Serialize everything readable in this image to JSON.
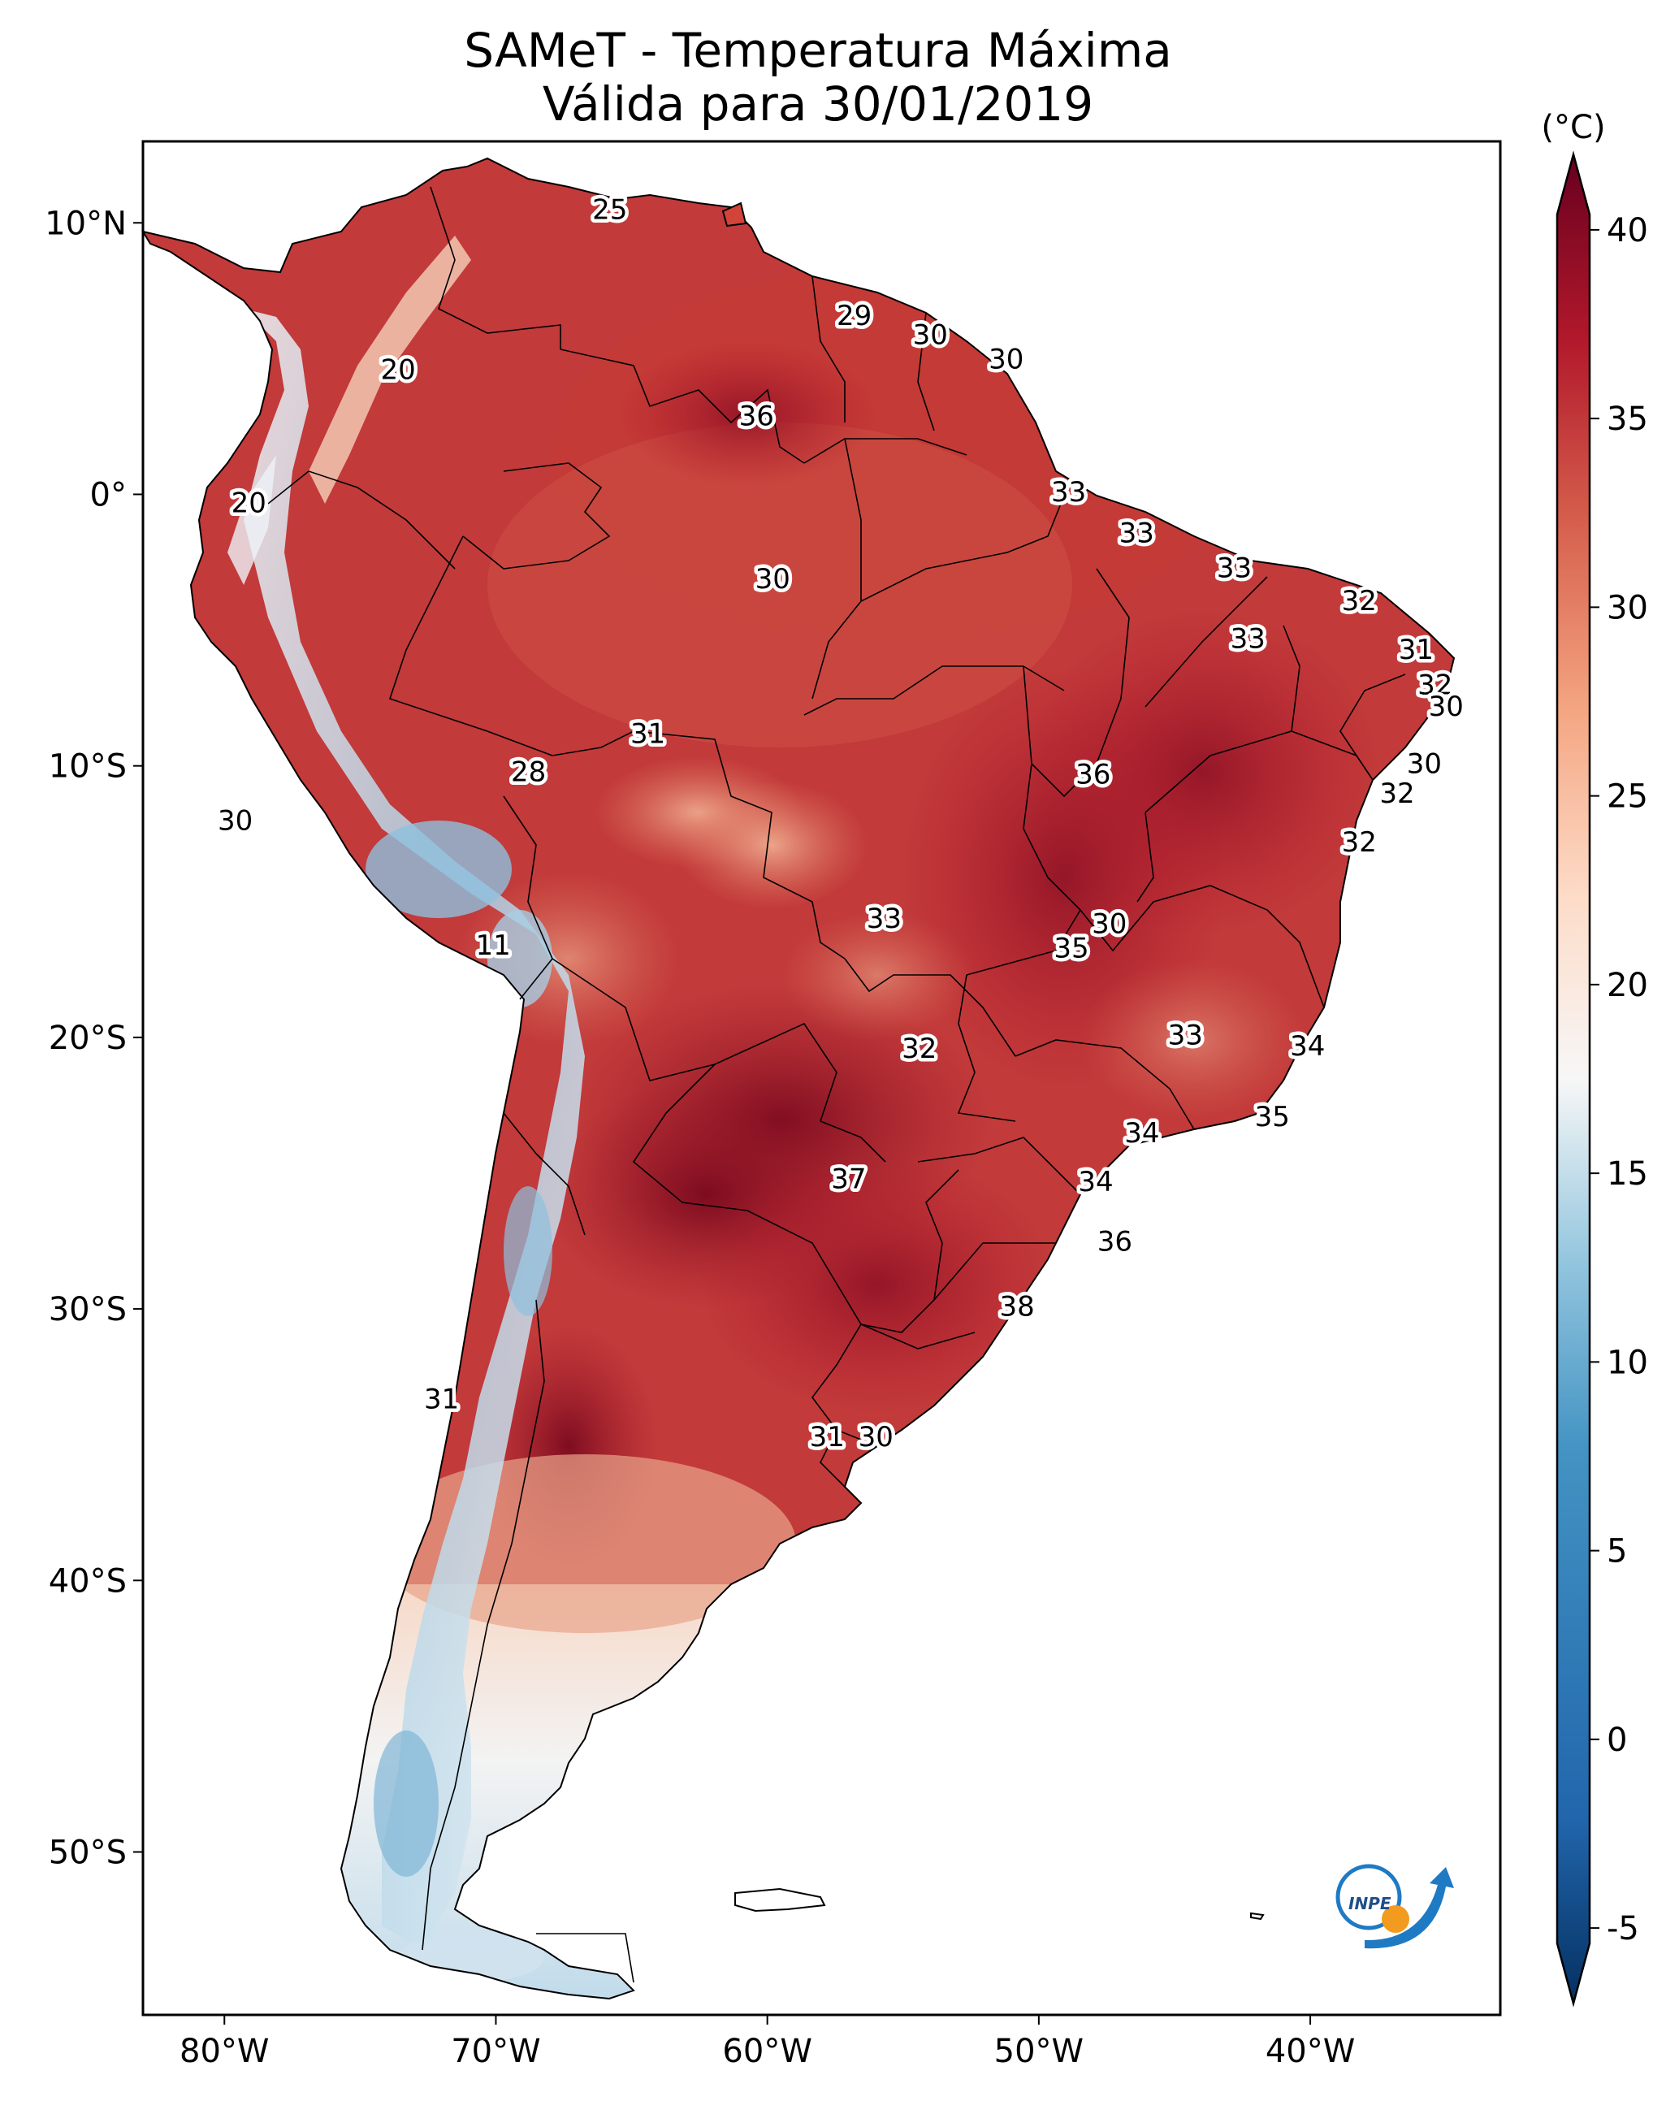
{
  "title": {
    "line1": "SAMeT - Temperatura Máxima",
    "line2": "Válida para 30/01/2019"
  },
  "map": {
    "lon_range": [
      -83,
      -33
    ],
    "lat_range": [
      -56,
      13
    ],
    "lon_ticks": [
      {
        "value": -80,
        "label": "80°W"
      },
      {
        "value": -70,
        "label": "70°W"
      },
      {
        "value": -60,
        "label": "60°W"
      },
      {
        "value": -50,
        "label": "50°W"
      },
      {
        "value": -40,
        "label": "40°W"
      }
    ],
    "lat_ticks": [
      {
        "value": 10,
        "label": "10°N"
      },
      {
        "value": 0,
        "label": "0°"
      },
      {
        "value": -10,
        "label": "10°S"
      },
      {
        "value": -20,
        "label": "20°S"
      },
      {
        "value": -30,
        "label": "30°S"
      },
      {
        "value": -40,
        "label": "40°S"
      },
      {
        "value": -50,
        "label": "50°S"
      }
    ],
    "contour_labels": [
      {
        "lon": -65.8,
        "lat": 10.5,
        "text": "25"
      },
      {
        "lon": -56.8,
        "lat": 6.6,
        "text": "29"
      },
      {
        "lon": -54.0,
        "lat": 5.9,
        "text": "30"
      },
      {
        "lon": -51.2,
        "lat": 5.0,
        "text": "30"
      },
      {
        "lon": -73.6,
        "lat": 4.6,
        "text": "20"
      },
      {
        "lon": -60.4,
        "lat": 2.9,
        "text": "36"
      },
      {
        "lon": -79.1,
        "lat": -0.3,
        "text": "20"
      },
      {
        "lon": -48.9,
        "lat": 0.1,
        "text": "33"
      },
      {
        "lon": -46.4,
        "lat": -1.4,
        "text": "33"
      },
      {
        "lon": -59.8,
        "lat": -3.1,
        "text": "30"
      },
      {
        "lon": -42.8,
        "lat": -2.7,
        "text": "33"
      },
      {
        "lon": -38.2,
        "lat": -3.9,
        "text": "32"
      },
      {
        "lon": -42.3,
        "lat": -5.3,
        "text": "33"
      },
      {
        "lon": -36.1,
        "lat": -5.7,
        "text": "31"
      },
      {
        "lon": -35.4,
        "lat": -7.0,
        "text": "32"
      },
      {
        "lon": -35.0,
        "lat": -7.8,
        "text": "30"
      },
      {
        "lon": -64.4,
        "lat": -8.8,
        "text": "31"
      },
      {
        "lon": -68.8,
        "lat": -10.2,
        "text": "28"
      },
      {
        "lon": -48.0,
        "lat": -10.3,
        "text": "36"
      },
      {
        "lon": -35.8,
        "lat": -9.9,
        "text": "30"
      },
      {
        "lon": -36.8,
        "lat": -11.0,
        "text": "32"
      },
      {
        "lon": -38.2,
        "lat": -12.8,
        "text": "32"
      },
      {
        "lon": -79.6,
        "lat": -12.0,
        "text": "30"
      },
      {
        "lon": -55.7,
        "lat": -15.6,
        "text": "33"
      },
      {
        "lon": -47.4,
        "lat": -15.8,
        "text": "30"
      },
      {
        "lon": -48.8,
        "lat": -16.7,
        "text": "35"
      },
      {
        "lon": -70.1,
        "lat": -16.6,
        "text": "11"
      },
      {
        "lon": -44.6,
        "lat": -19.9,
        "text": "33"
      },
      {
        "lon": -40.1,
        "lat": -20.3,
        "text": "34"
      },
      {
        "lon": -54.4,
        "lat": -20.4,
        "text": "32"
      },
      {
        "lon": -41.4,
        "lat": -22.9,
        "text": "35"
      },
      {
        "lon": -46.2,
        "lat": -23.5,
        "text": "34"
      },
      {
        "lon": -57.0,
        "lat": -25.2,
        "text": "37"
      },
      {
        "lon": -47.9,
        "lat": -25.3,
        "text": "34"
      },
      {
        "lon": -47.2,
        "lat": -27.5,
        "text": "36"
      },
      {
        "lon": -50.8,
        "lat": -29.9,
        "text": "38"
      },
      {
        "lon": -72.0,
        "lat": -33.3,
        "text": "31"
      },
      {
        "lon": -57.8,
        "lat": -34.7,
        "text": "31"
      },
      {
        "lon": -56.0,
        "lat": -34.7,
        "text": "30"
      }
    ],
    "logo_text": "INPE"
  },
  "colorbar": {
    "unit": "(°C)",
    "vmin": -7,
    "vmax": 42,
    "ticks": [
      {
        "value": 40,
        "label": "40"
      },
      {
        "value": 35,
        "label": "35"
      },
      {
        "value": 30,
        "label": "30"
      },
      {
        "value": 25,
        "label": "25"
      },
      {
        "value": 20,
        "label": "20"
      },
      {
        "value": 15,
        "label": "15"
      },
      {
        "value": 10,
        "label": "10"
      },
      {
        "value": 5,
        "label": "5"
      },
      {
        "value": 0,
        "label": "0"
      },
      {
        "value": -5,
        "label": "-5"
      }
    ]
  },
  "colors": {
    "hot": "#67001f",
    "warm": "#b2182b",
    "mild": "#d6604d",
    "light_warm": "#f4a582",
    "neutral": "#f7f7f7",
    "light_cool": "#92c5de",
    "cool": "#4393c3",
    "cold": "#053061",
    "border": "#000000"
  }
}
